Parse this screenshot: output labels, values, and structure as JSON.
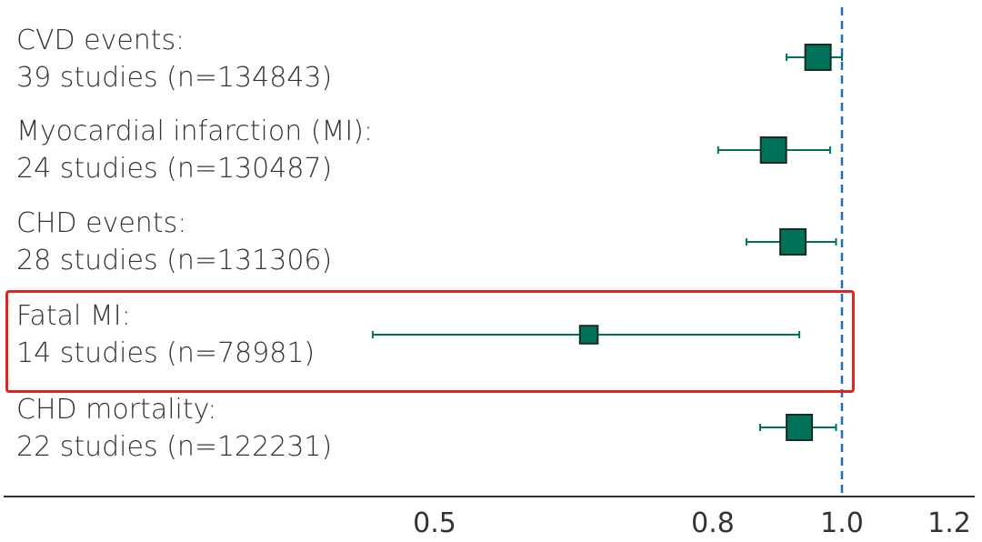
{
  "chart_data": {
    "type": "forest",
    "x_scale": "log",
    "xlim": [
      0.34,
      1.24
    ],
    "xticks": [
      0.5,
      0.8,
      1.0,
      1.2
    ],
    "xtick_labels": [
      "0.5",
      "0.8",
      "1.0",
      "1.2"
    ],
    "reference_line": 1.0,
    "colors": {
      "marker": "#00725a",
      "whisker": "#00725a",
      "reference_line": "#1f6fb8",
      "highlight": "#e8231f"
    },
    "rows": [
      {
        "label": "CVD events:",
        "sublabel": "39 studies (n=134843)",
        "estimate": 0.96,
        "ci_low": 0.91,
        "ci_high": 1.0,
        "weight": 1.0
      },
      {
        "label": "Myocardial infarction (MI):",
        "sublabel": "24 studies (n=130487)",
        "estimate": 0.89,
        "ci_low": 0.81,
        "ci_high": 0.98,
        "weight": 1.0
      },
      {
        "label": "CHD events:",
        "sublabel": "28 studies (n=131306)",
        "estimate": 0.92,
        "ci_low": 0.85,
        "ci_high": 0.99,
        "weight": 1.0
      },
      {
        "label": "Fatal MI:",
        "sublabel": "14 studies (n=78981)",
        "estimate": 0.65,
        "ci_low": 0.45,
        "ci_high": 0.93,
        "weight": 0.7,
        "highlighted": true
      },
      {
        "label": "CHD mortality:",
        "sublabel": "22 studies (n=122231)",
        "estimate": 0.93,
        "ci_low": 0.87,
        "ci_high": 0.99,
        "weight": 1.0
      }
    ]
  }
}
